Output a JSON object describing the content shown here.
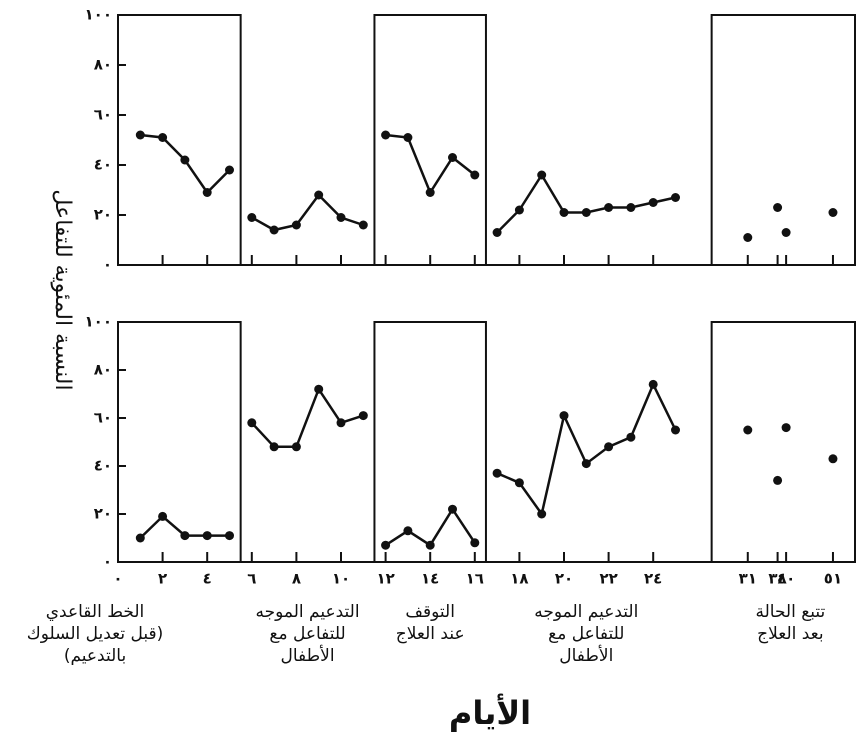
{
  "chart_data": [
    {
      "type": "line",
      "series": [
        {
          "x": [
            1,
            2,
            3,
            4,
            5
          ],
          "values": [
            52,
            51,
            42,
            29,
            38
          ],
          "color": "#111",
          "line": true
        },
        {
          "x": [
            6,
            7,
            8,
            9,
            10,
            11
          ],
          "values": [
            19,
            14,
            16,
            28,
            19,
            16
          ],
          "color": "#111",
          "line": true
        },
        {
          "x": [
            12,
            13,
            14,
            15,
            16
          ],
          "values": [
            52,
            51,
            29,
            43,
            36
          ],
          "color": "#111",
          "line": true
        },
        {
          "x": [
            17,
            18,
            19,
            20,
            21,
            22,
            23,
            24,
            25
          ],
          "values": [
            13,
            22,
            36,
            21,
            21,
            23,
            23,
            25,
            27
          ],
          "color": "#111",
          "line": true
        },
        {
          "x": [
            31,
            38,
            40,
            51
          ],
          "values": [
            11,
            23,
            13,
            21
          ],
          "color": "#111",
          "line": false
        }
      ],
      "ylim": [
        0,
        100
      ],
      "yticks": [
        {
          "value": 0,
          "label": "٠"
        },
        {
          "value": 20,
          "label": "٢٠"
        },
        {
          "value": 40,
          "label": "٤٠"
        },
        {
          "value": 60,
          "label": "٦٠"
        },
        {
          "value": 80,
          "label": "٨٠"
        },
        {
          "value": 100,
          "label": "١٠٠"
        }
      ]
    },
    {
      "type": "line",
      "series": [
        {
          "x": [
            1,
            2,
            3,
            4,
            5
          ],
          "values": [
            10,
            19,
            11,
            11,
            11
          ],
          "color": "#111",
          "line": true
        },
        {
          "x": [
            6,
            7,
            8,
            9,
            10,
            11
          ],
          "values": [
            58,
            48,
            48,
            72,
            58,
            61
          ],
          "color": "#111",
          "line": true
        },
        {
          "x": [
            12,
            13,
            14,
            15,
            16
          ],
          "values": [
            7,
            13,
            7,
            22,
            8
          ],
          "color": "#111",
          "line": true
        },
        {
          "x": [
            17,
            18,
            19,
            20,
            21,
            22,
            23,
            24,
            25
          ],
          "values": [
            37,
            33,
            20,
            61,
            41,
            48,
            52,
            74,
            55
          ],
          "color": "#111",
          "line": true
        },
        {
          "x": [
            31,
            38,
            40,
            51
          ],
          "values": [
            55,
            34,
            56,
            43
          ],
          "color": "#111",
          "line": false
        }
      ],
      "ylim": [
        0,
        100
      ],
      "yticks": [
        {
          "value": 0,
          "label": "٠"
        },
        {
          "value": 20,
          "label": "٢٠"
        },
        {
          "value": 40,
          "label": "٤٠"
        },
        {
          "value": 60,
          "label": "٦٠"
        },
        {
          "value": 80,
          "label": "٨٠"
        },
        {
          "value": 100,
          "label": "١٠٠"
        }
      ],
      "xticks": [
        {
          "value": 0,
          "label": "٠"
        },
        {
          "value": 2,
          "label": "٢"
        },
        {
          "value": 4,
          "label": "٤"
        },
        {
          "value": 6,
          "label": "٦"
        },
        {
          "value": 8,
          "label": "٨"
        },
        {
          "value": 10,
          "label": "١٠"
        },
        {
          "value": 12,
          "label": "١٢"
        },
        {
          "value": 14,
          "label": "١٤"
        },
        {
          "value": 16,
          "label": "١٦"
        },
        {
          "value": 18,
          "label": "١٨"
        },
        {
          "value": 20,
          "label": "٢٠"
        },
        {
          "value": 22,
          "label": "٢٢"
        },
        {
          "value": 24,
          "label": "٢٤"
        },
        {
          "value": 31,
          "label": "٣١"
        },
        {
          "value": 38,
          "label": "٣٨"
        },
        {
          "value": 40,
          "label": "٤٠"
        },
        {
          "value": 51,
          "label": "٥١"
        }
      ],
      "phases": [
        [
          "الخط القاعدي",
          "(قبل تعديل السلوك",
          "بالتدعيم)"
        ],
        [
          "التدعيم الموجه",
          "للتفاعل مع",
          "الأطفال"
        ],
        [
          "التوقف",
          "عند العلاج"
        ],
        [
          "التدعيم الموجه",
          "للتفاعل مع",
          "الأطفال"
        ],
        [
          "تتبع الحالة",
          "بعد العلاج"
        ]
      ],
      "ylabel": "النسبة المئوية للتفاعل",
      "xlabel": "الأيام"
    }
  ]
}
